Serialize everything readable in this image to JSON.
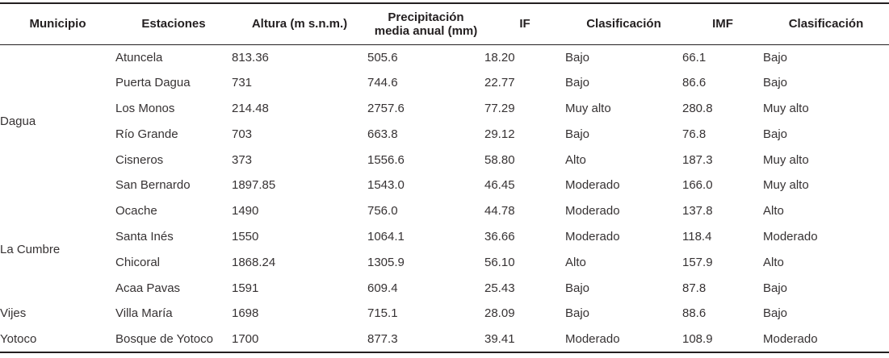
{
  "table": {
    "columns": [
      "Municipio",
      "Estaciones",
      "Altura (m s.n.m.)",
      "Precipitación media anual (mm)",
      "IF",
      "Clasificación",
      "IMF",
      "Clasificación"
    ],
    "text_color": "#363233",
    "header_color": "#231f20",
    "rule_color": "#231f20",
    "groups": [
      {
        "municipio": "Dagua",
        "rows": [
          {
            "estacion": "Atuncela",
            "altura": "813.36",
            "precipitacion": "505.6",
            "if": "18.20",
            "clasificacion_if": "Bajo",
            "imf": "66.1",
            "clasificacion_imf": "Bajo"
          },
          {
            "estacion": "Puerta Dagua",
            "altura": "731",
            "precipitacion": "744.6",
            "if": "22.77",
            "clasificacion_if": "Bajo",
            "imf": "86.6",
            "clasificacion_imf": "Bajo"
          },
          {
            "estacion": "Los Monos",
            "altura": "214.48",
            "precipitacion": "2757.6",
            "if": "77.29",
            "clasificacion_if": "Muy alto",
            "imf": "280.8",
            "clasificacion_imf": "Muy alto"
          },
          {
            "estacion": "Río Grande",
            "altura": "703",
            "precipitacion": "663.8",
            "if": "29.12",
            "clasificacion_if": "Bajo",
            "imf": "76.8",
            "clasificacion_imf": "Bajo"
          },
          {
            "estacion": "Cisneros",
            "altura": "373",
            "precipitacion": "1556.6",
            "if": "58.80",
            "clasificacion_if": "Alto",
            "imf": "187.3",
            "clasificacion_imf": "Muy alto"
          },
          {
            "estacion": "San Bernardo",
            "altura": "1897.85",
            "precipitacion": "1543.0",
            "if": "46.45",
            "clasificacion_if": "Moderado",
            "imf": "166.0",
            "clasificacion_imf": "Muy alto"
          }
        ]
      },
      {
        "municipio": "La Cumbre",
        "rows": [
          {
            "estacion": "Ocache",
            "altura": "1490",
            "precipitacion": "756.0",
            "if": "44.78",
            "clasificacion_if": "Moderado",
            "imf": "137.8",
            "clasificacion_imf": "Alto"
          },
          {
            "estacion": "Santa Inés",
            "altura": "1550",
            "precipitacion": "1064.1",
            "if": "36.66",
            "clasificacion_if": "Moderado",
            "imf": "118.4",
            "clasificacion_imf": "Moderado"
          },
          {
            "estacion": "Chicoral",
            "altura": "1868.24",
            "precipitacion": "1305.9",
            "if": "56.10",
            "clasificacion_if": "Alto",
            "imf": "157.9",
            "clasificacion_imf": "Alto"
          },
          {
            "estacion": "Acaa Pavas",
            "altura": "1591",
            "precipitacion": "609.4",
            "if": "25.43",
            "clasificacion_if": "Bajo",
            "imf": "87.8",
            "clasificacion_imf": "Bajo"
          }
        ]
      },
      {
        "municipio": "Vijes",
        "rows": [
          {
            "estacion": "Villa María",
            "altura": "1698",
            "precipitacion": "715.1",
            "if": "28.09",
            "clasificacion_if": "Bajo",
            "imf": "88.6",
            "clasificacion_imf": "Bajo"
          }
        ]
      },
      {
        "municipio": "Yotoco",
        "rows": [
          {
            "estacion": "Bosque de Yotoco",
            "altura": "1700",
            "precipitacion": "877.3",
            "if": "39.41",
            "clasificacion_if": "Moderado",
            "imf": "108.9",
            "clasificacion_imf": "Moderado"
          }
        ]
      }
    ]
  }
}
